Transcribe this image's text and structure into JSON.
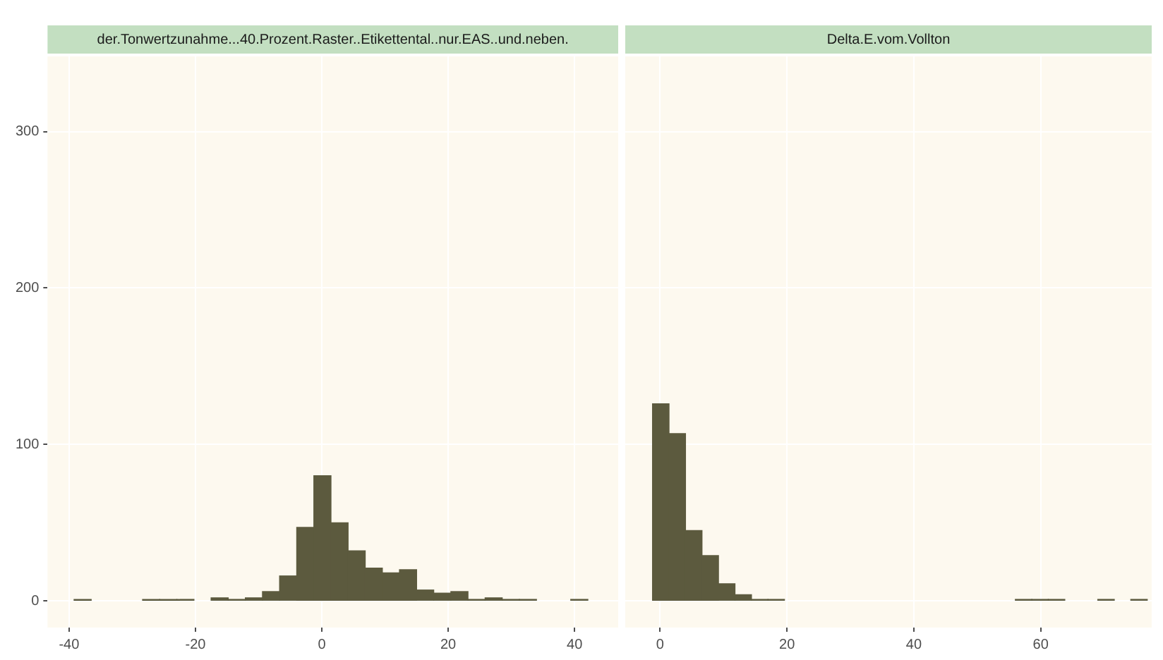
{
  "chart_data": [
    {
      "type": "histogram",
      "title": "der.Tonwertzunahme...40.Prozent.Raster..Etikettental..nur.EAS..und.neben.",
      "color": "#5c5a3e",
      "bins": [
        -39.2,
        -36.49,
        -33.78,
        -31.07,
        -28.36,
        -25.65,
        -22.94,
        -20.23,
        -17.52,
        -14.81,
        -12.1,
        -9.39,
        -6.68,
        -3.97,
        -1.26,
        1.45,
        4.16,
        6.87,
        9.58,
        12.29,
        15.0,
        17.71,
        20.42,
        23.13,
        25.84,
        28.55,
        31.26,
        33.97,
        36.68,
        39.39,
        42.1
      ],
      "values": [
        1,
        0,
        0,
        0,
        1,
        1,
        1,
        0,
        2,
        1,
        2,
        6,
        16,
        47,
        80,
        50,
        32,
        21,
        18,
        20,
        7,
        5,
        6,
        1,
        2,
        1,
        1,
        0,
        0,
        1
      ],
      "xlim": [
        -43.4,
        46.9
      ],
      "xticks": [
        -40,
        -20,
        0,
        20,
        40
      ],
      "ylim": [
        -17,
        348
      ],
      "yticks": [
        0,
        100,
        200,
        300
      ],
      "grid": true
    },
    {
      "type": "histogram",
      "title": "Delta.E.vom.Vollton",
      "color": "#5c5a3e",
      "bins": [
        -1.2,
        1.4,
        4.0,
        6.6,
        9.2,
        11.8,
        14.4,
        17.0,
        19.6,
        22.2,
        24.8,
        27.4,
        30.0,
        32.6,
        35.2,
        37.8,
        40.4,
        43.0,
        45.6,
        48.2,
        50.8,
        53.4,
        56.0,
        58.6,
        61.2,
        63.8,
        66.4,
        69.0,
        71.6,
        74.2,
        76.8
      ],
      "values": [
        126,
        107,
        45,
        29,
        11,
        4,
        1,
        1,
        0,
        0,
        0,
        0,
        0,
        0,
        0,
        0,
        0,
        0,
        0,
        0,
        0,
        0,
        1,
        1,
        1,
        0,
        0,
        1,
        0,
        1
      ],
      "xlim": [
        -5.5,
        77.5
      ],
      "xticks": [
        0,
        20,
        40,
        60
      ],
      "ylim": [
        -17,
        348
      ],
      "yticks": [
        0,
        100,
        200,
        300
      ],
      "grid": true,
      "tick_labels": "x"
    }
  ]
}
